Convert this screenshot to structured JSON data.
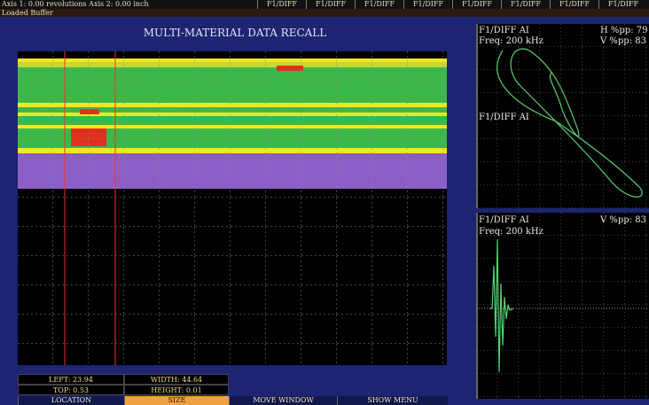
{
  "header": {
    "axis_status": "Axis 1: 0.00 revolutions Axis 2: 0.00 inch",
    "tabs": [
      "F1/DIFF",
      "F1/DIFF",
      "F1/DIFF",
      "F1/DIFF",
      "F1/DIFF",
      "F1/DIFF",
      "F1/DIFF",
      "F1/DIFF"
    ],
    "status": "Loaded Buffer"
  },
  "recall": {
    "title": "MULTI-MATERIAL DATA RECALL",
    "readouts": {
      "left": "LEFT: 23.94",
      "width": "WIDTH: 44.64",
      "top": "TOP: 0.53",
      "height": "HEIGHT: 0.01"
    }
  },
  "menu": [
    "LOCATION",
    "SIZE",
    "MOVE WINDOW",
    "SHOW MENU"
  ],
  "panels": [
    {
      "channel": "F1/DIFF AI",
      "freq": "Freq: 200 kHz",
      "h": "H %pp: 79",
      "v": "V %pp: 83"
    },
    {
      "channel": "F1/DIFF AI",
      "freq": "Freq: 200 kHz",
      "v": "V %pp: 83"
    }
  ]
}
